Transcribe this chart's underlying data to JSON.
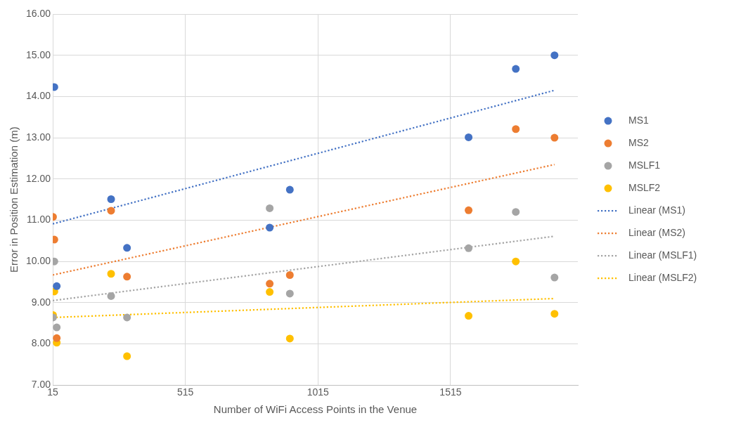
{
  "chart_data": {
    "type": "scatter",
    "xlabel": "Number of WiFi Access Points in the Venue",
    "ylabel": "Error in Position Estimation (m)",
    "xlim": [
      15,
      1995
    ],
    "xticks": [
      15,
      515,
      1015,
      1515
    ],
    "ylim": [
      7,
      16
    ],
    "yticks": [
      {
        "value": 7,
        "label": "7.00"
      },
      {
        "value": 8,
        "label": "8.00"
      },
      {
        "value": 9,
        "label": "9.00"
      },
      {
        "value": 10,
        "label": "10.00"
      },
      {
        "value": 11,
        "label": "11.00"
      },
      {
        "value": 12,
        "label": "12.00"
      },
      {
        "value": 13,
        "label": "13.00"
      },
      {
        "value": 14,
        "label": "14.00"
      },
      {
        "value": 15,
        "label": "15.00"
      },
      {
        "value": 16,
        "label": "16.00"
      }
    ],
    "grid": true,
    "legend": "right",
    "marker": "circle",
    "series": [
      {
        "name": "MS1",
        "color": "#4472c4",
        "x": [
          21,
          30,
          235,
          295,
          833,
          909,
          1583,
          1761,
          1907
        ],
        "values": [
          14.23,
          9.4,
          11.51,
          10.33,
          10.82,
          11.74,
          13.01,
          14.67,
          15.0
        ]
      },
      {
        "name": "MS2",
        "color": "#ed7d31",
        "x": [
          16,
          21,
          30,
          235,
          295,
          833,
          909,
          1583,
          1761,
          1907
        ],
        "values": [
          11.08,
          10.53,
          8.14,
          11.23,
          9.63,
          9.46,
          9.67,
          11.24,
          13.21,
          13.0
        ]
      },
      {
        "name": "MSLF1",
        "color": "#a5a5a5",
        "x": [
          21,
          16,
          30,
          235,
          295,
          833,
          909,
          1583,
          1761,
          1907
        ],
        "values": [
          10.0,
          8.64,
          8.4,
          9.16,
          8.64,
          11.29,
          9.22,
          10.32,
          11.2,
          9.61
        ]
      },
      {
        "name": "MSLF2",
        "color": "#ffc000",
        "x": [
          21,
          16,
          30,
          235,
          295,
          833,
          909,
          1583,
          1761,
          1907
        ],
        "values": [
          9.27,
          8.7,
          8.03,
          9.7,
          7.7,
          9.26,
          8.13,
          8.68,
          10.0,
          8.73
        ]
      },
      {
        "name": "Linear (MS1)",
        "type": "line",
        "line_style": "dotted",
        "marker": "none",
        "color": "#4472c4",
        "x": [
          15,
          1907
        ],
        "values": [
          10.91,
          14.15
        ]
      },
      {
        "name": "Linear (MS2)",
        "type": "line",
        "line_style": "dotted",
        "marker": "none",
        "color": "#ed7d31",
        "x": [
          15,
          1907
        ],
        "values": [
          9.67,
          12.35
        ]
      },
      {
        "name": "Linear (MSLF1)",
        "type": "line",
        "line_style": "dotted",
        "marker": "none",
        "color": "#a5a5a5",
        "x": [
          15,
          1907
        ],
        "values": [
          9.05,
          10.61
        ]
      },
      {
        "name": "Linear (MSLF2)",
        "type": "line",
        "line_style": "dotted",
        "marker": "none",
        "color": "#ffc000",
        "x": [
          15,
          1907
        ],
        "values": [
          8.64,
          9.1
        ]
      }
    ]
  }
}
